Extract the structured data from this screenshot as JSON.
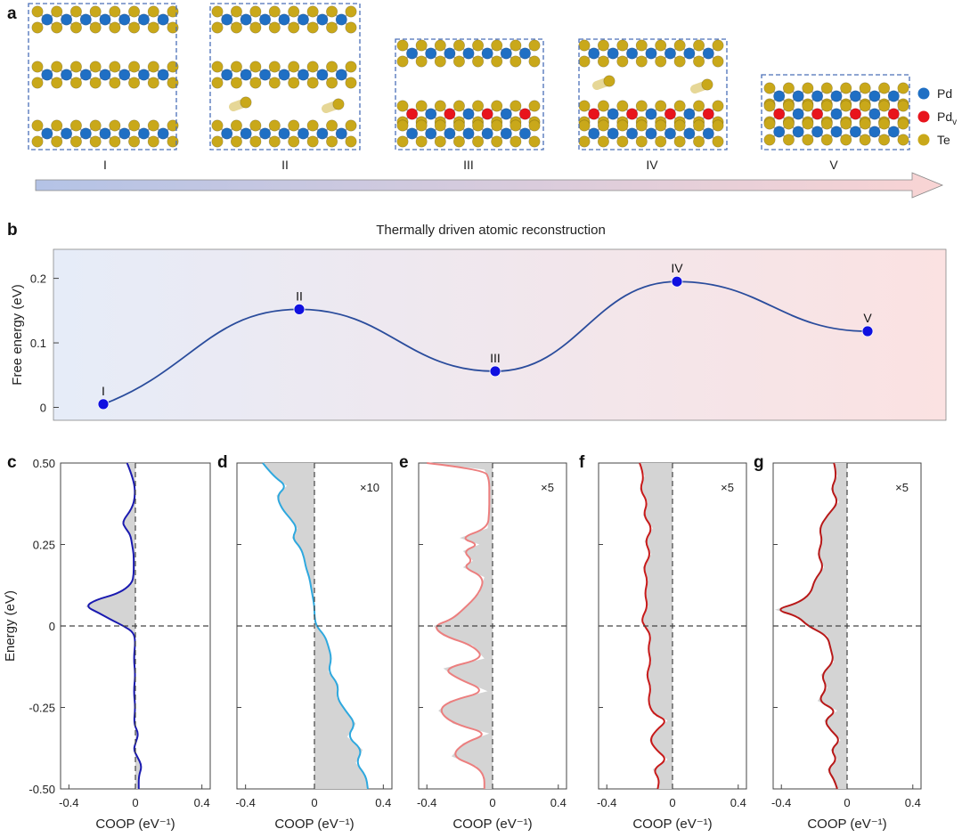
{
  "panel_labels": {
    "a": "a",
    "b": "b",
    "c": "c",
    "d": "d",
    "e": "e",
    "f": "f",
    "g": "g"
  },
  "panel_a": {
    "stages": [
      "I",
      "II",
      "III",
      "IV",
      "V"
    ],
    "legend": [
      {
        "label": "Pd",
        "sub": "",
        "color": "#1f6fc4"
      },
      {
        "label": "Pd",
        "sub": "v",
        "color": "#e8141c"
      },
      {
        "label": "Te",
        "sub": "",
        "color": "#c9a81a"
      }
    ],
    "bond_color": "#b8b8b8",
    "arrow_gradient": [
      "#b4c3e6",
      "#f9d4d4"
    ]
  },
  "chart_data": [
    {
      "id": "b",
      "type": "line",
      "title": "Thermally driven atomic reconstruction",
      "xlabel": "",
      "ylabel": "Free energy (eV)",
      "ylim": [
        -0.02,
        0.245
      ],
      "yticks": [
        "0",
        "0.1",
        "0.2"
      ],
      "ytick_values": [
        0,
        0.1,
        0.2
      ],
      "points": [
        {
          "label": "I",
          "x": 0,
          "y": 0.005
        },
        {
          "label": "II",
          "x": 1,
          "y": 0.152
        },
        {
          "label": "III",
          "x": 2,
          "y": 0.056
        },
        {
          "label": "IV",
          "x": 3,
          "y": 0.195
        },
        {
          "label": "V",
          "x": 4,
          "y": 0.118
        }
      ],
      "line_color": "#2a4c9c",
      "marker_color": "#1010e0",
      "background_gradient": [
        "#e6ecf8",
        "#fbe2e2"
      ]
    },
    {
      "id": "c",
      "type": "area",
      "scale_label": "",
      "xlabel": "COOP (eV⁻¹)",
      "ylabel": "Energy (eV)",
      "xlim": [
        -0.45,
        0.45
      ],
      "ylim": [
        -0.5,
        0.5
      ],
      "xticks": [
        "-0.4",
        "0",
        "0.4"
      ],
      "xtick_values": [
        -0.4,
        0,
        0.4
      ],
      "yticks": [
        "0.50",
        "0.25",
        "0",
        "-0.25",
        "-0.50"
      ],
      "ytick_values": [
        0.5,
        0.25,
        0,
        -0.25,
        -0.5
      ],
      "line_color": "#1a1ab0",
      "energy": [
        0.5,
        0.45,
        0.4,
        0.36,
        0.32,
        0.3,
        0.28,
        0.25,
        0.22,
        0.19,
        0.16,
        0.13,
        0.1,
        0.08,
        0.06,
        0.04,
        0.02,
        0.0,
        -0.02,
        -0.05,
        -0.1,
        -0.15,
        -0.2,
        -0.25,
        -0.3,
        -0.33,
        -0.36,
        -0.38,
        -0.4,
        -0.43,
        -0.46,
        -0.5
      ],
      "coop": [
        -0.05,
        -0.01,
        0.0,
        -0.02,
        -0.08,
        -0.06,
        -0.03,
        -0.02,
        -0.01,
        -0.01,
        -0.01,
        -0.02,
        -0.1,
        -0.24,
        -0.3,
        -0.22,
        -0.15,
        -0.07,
        -0.01,
        0.0,
        -0.01,
        0.0,
        -0.01,
        0.0,
        -0.01,
        0.02,
        0.0,
        -0.01,
        0.01,
        0.04,
        0.02,
        0.02
      ]
    },
    {
      "id": "d",
      "type": "area",
      "scale_label": "×10",
      "xlabel": "COOP (eV⁻¹)",
      "ylabel": "",
      "xlim": [
        -0.45,
        0.45
      ],
      "ylim": [
        -0.5,
        0.5
      ],
      "xticks": [
        "-0.4",
        "0",
        "0.4"
      ],
      "xtick_values": [
        -0.4,
        0,
        0.4
      ],
      "line_color": "#2ea8de",
      "energy": [
        0.5,
        0.46,
        0.43,
        0.4,
        0.36,
        0.33,
        0.3,
        0.27,
        0.24,
        0.21,
        0.18,
        0.15,
        0.12,
        0.09,
        0.06,
        0.03,
        0.0,
        -0.03,
        -0.06,
        -0.1,
        -0.14,
        -0.18,
        -0.22,
        -0.26,
        -0.3,
        -0.34,
        -0.38,
        -0.42,
        -0.46,
        -0.5
      ],
      "coop": [
        -0.3,
        -0.24,
        -0.16,
        -0.22,
        -0.19,
        -0.14,
        -0.1,
        -0.13,
        -0.08,
        -0.06,
        -0.05,
        -0.03,
        -0.02,
        -0.01,
        0.0,
        0.0,
        0.01,
        0.06,
        0.08,
        0.1,
        0.08,
        0.14,
        0.13,
        0.18,
        0.24,
        0.19,
        0.28,
        0.24,
        0.3,
        0.31
      ]
    },
    {
      "id": "e",
      "type": "area",
      "scale_label": "×5",
      "xlabel": "COOP (eV⁻¹)",
      "ylabel": "",
      "xlim": [
        -0.45,
        0.45
      ],
      "ylim": [
        -0.5,
        0.5
      ],
      "xticks": [
        "-0.4",
        "0",
        "0.4"
      ],
      "xtick_values": [
        -0.4,
        0,
        0.4
      ],
      "line_color": "#ec7e7e",
      "energy": [
        0.5,
        0.48,
        0.45,
        0.4,
        0.35,
        0.3,
        0.27,
        0.25,
        0.23,
        0.2,
        0.18,
        0.15,
        0.1,
        0.05,
        0.02,
        0.0,
        -0.03,
        -0.06,
        -0.1,
        -0.13,
        -0.16,
        -0.2,
        -0.23,
        -0.26,
        -0.3,
        -0.33,
        -0.36,
        -0.4,
        -0.43,
        -0.46,
        -0.5
      ],
      "coop": [
        -0.4,
        -0.05,
        -0.02,
        -0.02,
        -0.02,
        -0.03,
        -0.2,
        -0.08,
        -0.18,
        -0.12,
        -0.18,
        -0.05,
        -0.08,
        -0.18,
        -0.25,
        -0.36,
        -0.3,
        -0.12,
        -0.05,
        -0.3,
        -0.22,
        -0.03,
        -0.26,
        -0.33,
        -0.24,
        -0.02,
        -0.18,
        -0.25,
        -0.1,
        -0.05,
        -0.05
      ]
    },
    {
      "id": "f",
      "type": "area",
      "scale_label": "×5",
      "xlabel": "COOP (eV⁻¹)",
      "ylabel": "",
      "xlim": [
        -0.45,
        0.45
      ],
      "ylim": [
        -0.5,
        0.5
      ],
      "xticks": [
        "-0.4",
        "0",
        "0.4"
      ],
      "xtick_values": [
        -0.4,
        0,
        0.4
      ],
      "line_color": "#c81a1a",
      "energy": [
        0.5,
        0.46,
        0.42,
        0.38,
        0.34,
        0.3,
        0.26,
        0.22,
        0.18,
        0.14,
        0.1,
        0.06,
        0.02,
        0.0,
        -0.03,
        -0.07,
        -0.11,
        -0.15,
        -0.19,
        -0.23,
        -0.27,
        -0.29,
        -0.32,
        -0.35,
        -0.38,
        -0.41,
        -0.44,
        -0.47,
        -0.5
      ],
      "coop": [
        -0.2,
        -0.17,
        -0.2,
        -0.15,
        -0.18,
        -0.12,
        -0.17,
        -0.13,
        -0.18,
        -0.15,
        -0.17,
        -0.15,
        -0.19,
        -0.17,
        -0.13,
        -0.15,
        -0.13,
        -0.16,
        -0.13,
        -0.15,
        -0.12,
        -0.03,
        -0.1,
        -0.14,
        -0.1,
        -0.03,
        -0.12,
        -0.08,
        -0.09
      ]
    },
    {
      "id": "g",
      "type": "area",
      "scale_label": "×5",
      "xlabel": "COOP (eV⁻¹)",
      "ylabel": "",
      "xlim": [
        -0.45,
        0.45
      ],
      "ylim": [
        -0.5,
        0.5
      ],
      "xticks": [
        "-0.4",
        "0",
        "0.4"
      ],
      "xtick_values": [
        -0.4,
        0,
        0.4
      ],
      "line_color": "#b81818",
      "energy": [
        0.5,
        0.46,
        0.42,
        0.38,
        0.34,
        0.3,
        0.26,
        0.22,
        0.18,
        0.14,
        0.1,
        0.07,
        0.05,
        0.03,
        0.0,
        -0.03,
        -0.07,
        -0.11,
        -0.15,
        -0.19,
        -0.23,
        -0.26,
        -0.29,
        -0.32,
        -0.35,
        -0.38,
        -0.41,
        -0.44,
        -0.47,
        -0.5
      ],
      "coop": [
        -0.08,
        -0.06,
        -0.1,
        -0.05,
        -0.12,
        -0.17,
        -0.15,
        -0.18,
        -0.14,
        -0.2,
        -0.22,
        -0.3,
        -0.44,
        -0.3,
        -0.24,
        -0.12,
        -0.1,
        -0.08,
        -0.16,
        -0.12,
        -0.18,
        -0.06,
        -0.14,
        -0.1,
        -0.04,
        -0.1,
        -0.06,
        -0.12,
        -0.08,
        -0.06
      ]
    }
  ]
}
